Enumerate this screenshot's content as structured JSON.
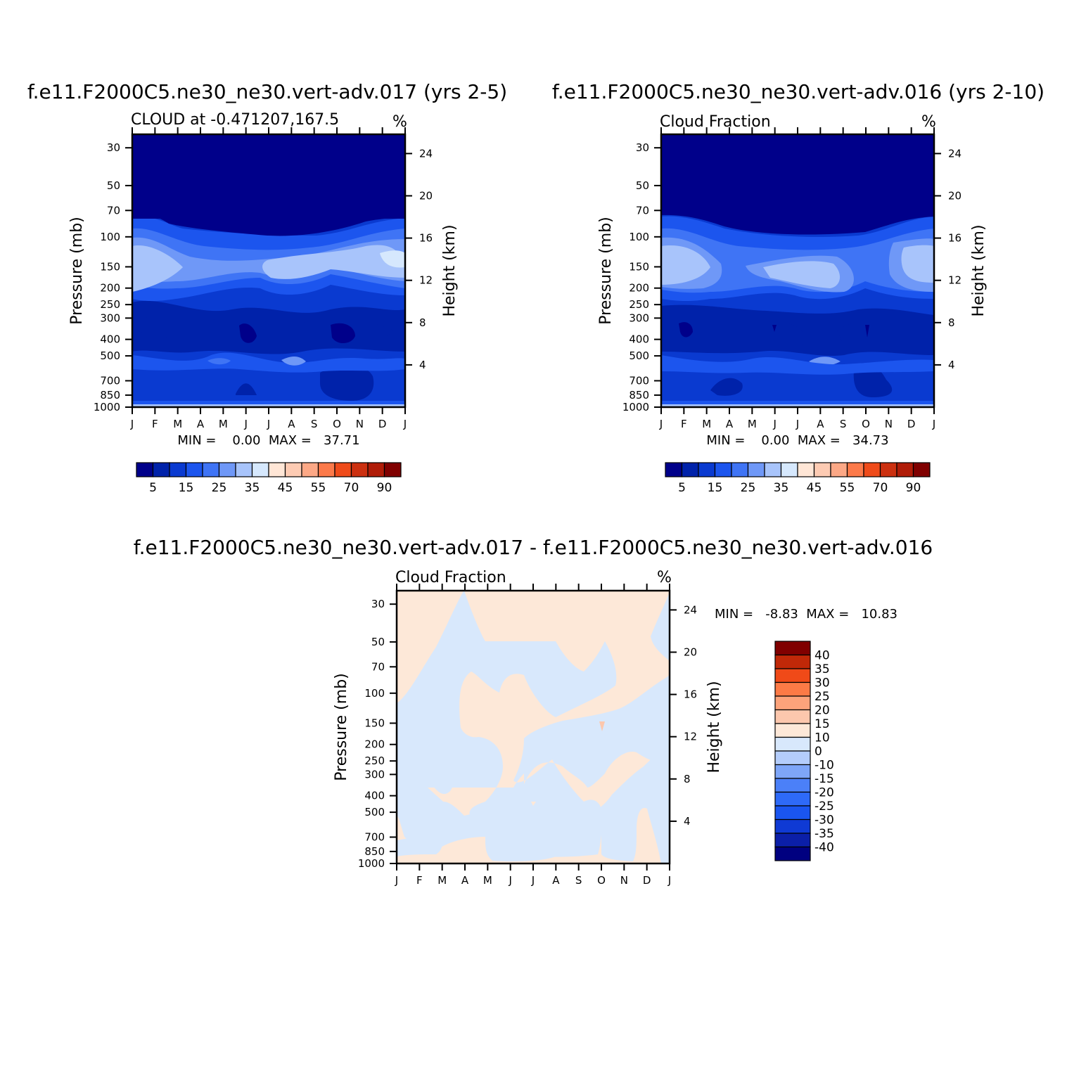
{
  "colors": {
    "seq": [
      "#00008a",
      "#0022aa",
      "#0a3ad0",
      "#1c55ee",
      "#3f74f5",
      "#6f98f7",
      "#a8c4fb",
      "#d6e8fd",
      "#ffe6d6",
      "#fdcbb3",
      "#fca886",
      "#fc7a4a",
      "#ef4b1a",
      "#cc3010",
      "#b01c08",
      "#800000"
    ],
    "diff_blue": "#d8e8fc",
    "diff_orange": "#fde8d8",
    "diff_scale": [
      "#000080",
      "#0b1fa8",
      "#0f3ad4",
      "#1a55f0",
      "#2e6af8",
      "#4b80f8",
      "#7ea6f8",
      "#b4cdfb",
      "#d8e8fc",
      "#fde8d8",
      "#fcc7ad",
      "#fca37b",
      "#fc7a46",
      "#f04a18",
      "#c02808",
      "#800000"
    ]
  },
  "plots": [
    {
      "title": "f.e11.F2000C5.ne30_ne30.vert-adv.017 (yrs 2-5)",
      "subtitle": "CLOUD at -0.471207,167.5",
      "units": "%",
      "minmax": "MIN =    0.00  MAX =   37.71"
    },
    {
      "title": "f.e11.F2000C5.ne30_ne30.vert-adv.016 (yrs 2-10)",
      "subtitle": "Cloud Fraction",
      "units": "%",
      "minmax": "MIN =    0.00  MAX =   34.73"
    },
    {
      "title": "f.e11.F2000C5.ne30_ne30.vert-adv.017 - f.e11.F2000C5.ne30_ne30.vert-adv.016",
      "subtitle": "Cloud Fraction",
      "units": "%",
      "minmax": "MIN =   -8.83  MAX =   10.83"
    }
  ],
  "chart_data": [
    {
      "type": "heatmap",
      "title": "f.e11.F2000C5.ne30_ne30.vert-adv.017 (yrs 2-5)",
      "subtitle": "CLOUD at -0.471207,167.5",
      "xlabel": "",
      "ylabel": "Pressure (mb)",
      "ylabel_right": "Height (km)",
      "units": "%",
      "x_ticks": [
        "J",
        "F",
        "M",
        "A",
        "M",
        "J",
        "J",
        "A",
        "S",
        "O",
        "N",
        "D",
        "J"
      ],
      "y_ticks": [
        "30",
        "50",
        "70",
        "100",
        "150",
        "200",
        "250",
        "300",
        "400",
        "500",
        "700",
        "850",
        "1000"
      ],
      "y_ticks_right": [
        "24",
        "20",
        "16",
        "12",
        "8",
        "4"
      ],
      "colorbar_labels": [
        "5",
        "15",
        "25",
        "35",
        "45",
        "55",
        "70",
        "90"
      ],
      "min": 0.0,
      "max": 37.71,
      "y_scale": "log"
    },
    {
      "type": "heatmap",
      "title": "f.e11.F2000C5.ne30_ne30.vert-adv.016 (yrs 2-10)",
      "subtitle": "Cloud Fraction",
      "xlabel": "",
      "ylabel": "Pressure (mb)",
      "ylabel_right": "Height (km)",
      "units": "%",
      "x_ticks": [
        "J",
        "F",
        "M",
        "A",
        "M",
        "J",
        "J",
        "A",
        "S",
        "O",
        "N",
        "D",
        "J"
      ],
      "y_ticks": [
        "30",
        "50",
        "70",
        "100",
        "150",
        "200",
        "250",
        "300",
        "400",
        "500",
        "700",
        "850",
        "1000"
      ],
      "y_ticks_right": [
        "24",
        "20",
        "16",
        "12",
        "8",
        "4"
      ],
      "colorbar_labels": [
        "5",
        "15",
        "25",
        "35",
        "45",
        "55",
        "70",
        "90"
      ],
      "min": 0.0,
      "max": 34.73,
      "y_scale": "log"
    },
    {
      "type": "heatmap",
      "title": "f.e11.F2000C5.ne30_ne30.vert-adv.017 - f.e11.F2000C5.ne30_ne30.vert-adv.016",
      "subtitle": "Cloud Fraction",
      "xlabel": "",
      "ylabel": "Pressure (mb)",
      "ylabel_right": "Height (km)",
      "units": "%",
      "x_ticks": [
        "J",
        "F",
        "M",
        "A",
        "M",
        "J",
        "J",
        "A",
        "S",
        "O",
        "N",
        "D",
        "J"
      ],
      "y_ticks": [
        "30",
        "50",
        "70",
        "100",
        "150",
        "200",
        "250",
        "300",
        "400",
        "500",
        "700",
        "850",
        "1000"
      ],
      "y_ticks_right": [
        "24",
        "20",
        "16",
        "12",
        "8",
        "4"
      ],
      "colorbar_labels": [
        "40",
        "35",
        "30",
        "25",
        "20",
        "15",
        "10",
        "0",
        "-10",
        "-15",
        "-20",
        "-25",
        "-30",
        "-35",
        "-40"
      ],
      "min": -8.83,
      "max": 10.83,
      "y_scale": "log"
    }
  ]
}
